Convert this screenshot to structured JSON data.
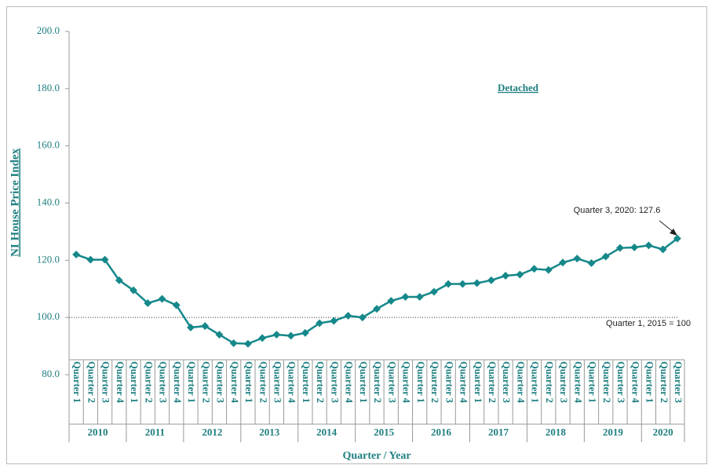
{
  "chart_data": {
    "type": "line",
    "ylabel": "NI House Price Index",
    "xlabel": "Quarter / Year",
    "annotations": {
      "series_name": "Detached",
      "last_point": "Quarter 3, 2020: 127.6",
      "reference": "Quarter 1, 2015 = 100"
    },
    "reference_value": 100,
    "categories": [
      "Quarter 1",
      "Quarter 2",
      "Quarter 3",
      "Quarter 4",
      "Quarter 1",
      "Quarter 2",
      "Quarter 3",
      "Quarter 4",
      "Quarter 1",
      "Quarter 2",
      "Quarter 3",
      "Quarter 4",
      "Quarter 1",
      "Quarter 2",
      "Quarter 3",
      "Quarter 4",
      "Quarter 1",
      "Quarter 2",
      "Quarter 3",
      "Quarter 4",
      "Quarter 1",
      "Quarter 2",
      "Quarter 3",
      "Quarter 4",
      "Quarter 1",
      "Quarter 2",
      "Quarter 3",
      "Quarter 4",
      "Quarter 1",
      "Quarter 2",
      "Quarter 3",
      "Quarter 4",
      "Quarter 1",
      "Quarter 2",
      "Quarter 3",
      "Quarter 4",
      "Quarter 1",
      "Quarter 2",
      "Quarter 3",
      "Quarter 4",
      "Quarter 1",
      "Quarter 2",
      "Quarter 3"
    ],
    "years": [
      "2010",
      "2011",
      "2012",
      "2013",
      "2014",
      "2015",
      "2016",
      "2017",
      "2018",
      "2019",
      "2020"
    ],
    "values": [
      122.0,
      120.2,
      120.2,
      113.0,
      109.5,
      105.0,
      106.5,
      104.3,
      96.5,
      97.0,
      94.0,
      91.0,
      90.8,
      92.8,
      94.0,
      93.6,
      94.6,
      98.0,
      98.8,
      100.6,
      100.0,
      103.0,
      105.8,
      107.2,
      107.2,
      109.0,
      111.7,
      111.7,
      112.0,
      113.0,
      114.6,
      115.0,
      117.0,
      116.6,
      119.2,
      120.6,
      119.0,
      121.3,
      124.3,
      124.5,
      125.2,
      123.8,
      127.6
    ],
    "color": "#15888a",
    "ylim": [
      80,
      200
    ],
    "yticks": [
      {
        "value": 80,
        "label": "80.0"
      },
      {
        "value": 100,
        "label": "100.0"
      },
      {
        "value": 120,
        "label": "120.0"
      },
      {
        "value": 140,
        "label": "140.0"
      },
      {
        "value": 160,
        "label": "160.0"
      },
      {
        "value": 180,
        "label": "180.0"
      },
      {
        "value": 200,
        "label": "200.0"
      }
    ]
  }
}
